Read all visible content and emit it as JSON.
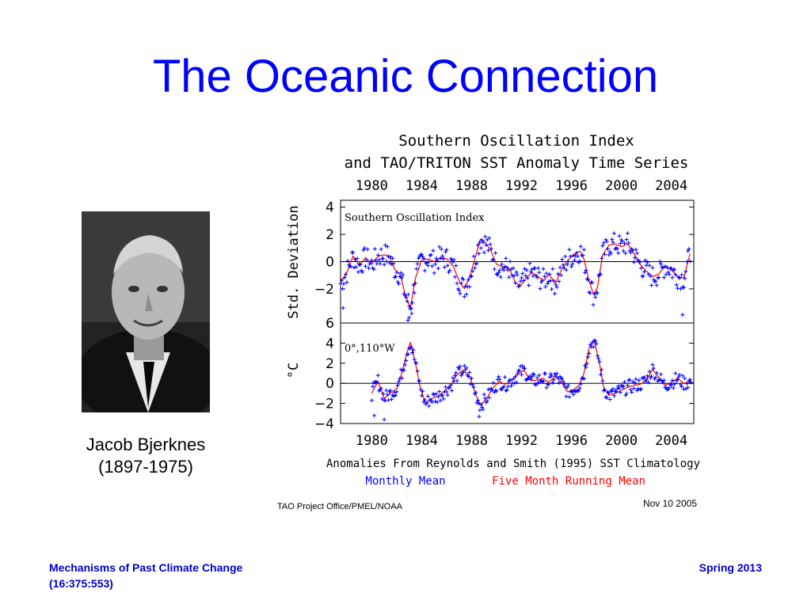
{
  "slide": {
    "title": "The Oceanic Connection",
    "caption_name": "Jacob Bjerknes",
    "caption_years": "(1897-1975)",
    "footer_left_line1": "Mechanisms of Past Climate Change",
    "footer_left_line2": "(16:375:553)",
    "footer_right": "Spring 2013"
  },
  "colors": {
    "title": "#0000ff",
    "footer": "#0000cc",
    "monthly": "#0000ff",
    "running": "#ff0000",
    "axis": "#000000"
  },
  "chart_data": {
    "type": "line",
    "title_line1": "Southern Oscillation Index",
    "title_line2": "and TAO/TRITON SST Anomaly Time Series",
    "x_ticks": [
      "1980",
      "1984",
      "1988",
      "1992",
      "1996",
      "2000",
      "2004"
    ],
    "xlim": [
      1977.5,
      2005.8
    ],
    "panels": [
      {
        "name": "soi",
        "label": "Southern Oscillation Index",
        "ylabel": "Std. Deviation",
        "ylim": [
          -4.5,
          4.5
        ],
        "y_ticks": [
          "4",
          "2",
          "0",
          "−2"
        ],
        "y_tick_values": [
          4,
          2,
          0,
          -2
        ],
        "zero_line": true,
        "anchors": [
          [
            1977.5,
            -1.6
          ],
          [
            1978.0,
            -0.8
          ],
          [
            1978.5,
            0.4
          ],
          [
            1979.0,
            -0.3
          ],
          [
            1979.5,
            0.3
          ],
          [
            1980.0,
            -0.2
          ],
          [
            1980.5,
            0.4
          ],
          [
            1981.0,
            0.5
          ],
          [
            1981.4,
            0.4
          ],
          [
            1981.8,
            -0.5
          ],
          [
            1982.3,
            -1.0
          ],
          [
            1982.7,
            -2.5
          ],
          [
            1983.1,
            -3.4
          ],
          [
            1983.5,
            -1.2
          ],
          [
            1984.0,
            0.1
          ],
          [
            1984.5,
            0.2
          ],
          [
            1985.0,
            0.0
          ],
          [
            1985.5,
            0.3
          ],
          [
            1986.0,
            0.2
          ],
          [
            1986.5,
            -0.3
          ],
          [
            1987.0,
            -1.4
          ],
          [
            1987.4,
            -2.0
          ],
          [
            1987.8,
            -1.2
          ],
          [
            1988.3,
            0.3
          ],
          [
            1988.7,
            1.7
          ],
          [
            1989.0,
            1.5
          ],
          [
            1989.5,
            0.9
          ],
          [
            1990.0,
            -0.2
          ],
          [
            1990.5,
            -0.4
          ],
          [
            1991.0,
            -0.5
          ],
          [
            1991.5,
            -1.5
          ],
          [
            1991.9,
            -1.8
          ],
          [
            1992.3,
            -1.3
          ],
          [
            1992.8,
            -0.8
          ],
          [
            1993.3,
            -1.1
          ],
          [
            1993.8,
            -1.4
          ],
          [
            1994.2,
            -0.9
          ],
          [
            1994.7,
            -1.6
          ],
          [
            1995.2,
            -0.6
          ],
          [
            1995.7,
            0.1
          ],
          [
            1996.2,
            0.5
          ],
          [
            1996.7,
            0.8
          ],
          [
            1997.0,
            0.2
          ],
          [
            1997.4,
            -1.4
          ],
          [
            1997.8,
            -2.5
          ],
          [
            1998.1,
            -1.8
          ],
          [
            1998.5,
            0.5
          ],
          [
            1999.0,
            1.2
          ],
          [
            1999.5,
            1.3
          ],
          [
            2000.0,
            1.1
          ],
          [
            2000.5,
            1.3
          ],
          [
            2001.0,
            0.6
          ],
          [
            2001.5,
            -0.2
          ],
          [
            2002.0,
            -0.7
          ],
          [
            2002.5,
            -1.1
          ],
          [
            2003.0,
            -0.9
          ],
          [
            2003.5,
            -0.3
          ],
          [
            2004.0,
            -0.6
          ],
          [
            2004.5,
            -1.1
          ],
          [
            2005.0,
            -1.2
          ],
          [
            2005.5,
            0.6
          ]
        ],
        "spread": 0.85,
        "outliers": [
          [
            1977.7,
            -3.4
          ],
          [
            1982.9,
            -4.3
          ],
          [
            1983.0,
            -4.1
          ],
          [
            2004.9,
            -3.9
          ],
          [
            1983.2,
            -3.8
          ]
        ]
      },
      {
        "name": "sst",
        "label": "0°,110°W",
        "ylabel": "°C",
        "ylim": [
          -4,
          6
        ],
        "y_ticks": [
          "6",
          "4",
          "2",
          "0",
          "−2",
          "−4"
        ],
        "y_tick_values": [
          6,
          4,
          2,
          0,
          -2,
          -4
        ],
        "zero_line": true,
        "anchors": [
          [
            1980.0,
            -1.0
          ],
          [
            1980.5,
            0.2
          ],
          [
            1981.0,
            -1.5
          ],
          [
            1981.5,
            -1.0
          ],
          [
            1982.0,
            -0.5
          ],
          [
            1982.4,
            1.0
          ],
          [
            1982.8,
            3.0
          ],
          [
            1983.1,
            4.1
          ],
          [
            1983.5,
            2.0
          ],
          [
            1983.9,
            -0.5
          ],
          [
            1984.3,
            -2.0
          ],
          [
            1984.8,
            -1.5
          ],
          [
            1985.3,
            -1.3
          ],
          [
            1985.8,
            -0.8
          ],
          [
            1986.3,
            -0.3
          ],
          [
            1986.8,
            0.8
          ],
          [
            1987.3,
            1.3
          ],
          [
            1987.8,
            0.8
          ],
          [
            1988.3,
            -1.0
          ],
          [
            1988.7,
            -2.2
          ],
          [
            1989.2,
            -1.5
          ],
          [
            1989.7,
            -0.5
          ],
          [
            1990.2,
            0.2
          ],
          [
            1990.7,
            -0.1
          ],
          [
            1991.2,
            0.3
          ],
          [
            1991.7,
            0.9
          ],
          [
            1992.2,
            1.3
          ],
          [
            1992.7,
            0.3
          ],
          [
            1993.2,
            0.3
          ],
          [
            1993.7,
            0.5
          ],
          [
            1994.2,
            0.1
          ],
          [
            1994.7,
            0.7
          ],
          [
            1995.2,
            0.1
          ],
          [
            1995.7,
            -0.9
          ],
          [
            1996.2,
            -0.6
          ],
          [
            1996.6,
            -0.2
          ],
          [
            1997.0,
            1.0
          ],
          [
            1997.4,
            3.5
          ],
          [
            1997.8,
            4.3
          ],
          [
            1998.2,
            2.3
          ],
          [
            1998.6,
            -0.5
          ],
          [
            1999.0,
            -1.2
          ],
          [
            1999.5,
            -1.0
          ],
          [
            2000.0,
            -0.7
          ],
          [
            2000.5,
            -0.4
          ],
          [
            2001.0,
            -0.2
          ],
          [
            2001.5,
            -0.1
          ],
          [
            2002.0,
            0.3
          ],
          [
            2002.5,
            1.4
          ],
          [
            2003.0,
            0.6
          ],
          [
            2003.5,
            -0.2
          ],
          [
            2004.0,
            0.1
          ],
          [
            2004.5,
            0.5
          ],
          [
            2005.0,
            0.0
          ],
          [
            2005.6,
            0.2
          ]
        ],
        "spread": 0.7,
        "outliers": [
          [
            1980.2,
            -3.2
          ],
          [
            1981.0,
            -3.6
          ],
          [
            1988.6,
            -3.3
          ]
        ]
      }
    ],
    "xlabel": "Anomalies From Reynolds and Smith (1995) SST Climatology",
    "series": [
      {
        "name": "Monthly Mean",
        "marker": "+"
      },
      {
        "name": "Five Month Running Mean",
        "marker": "line"
      }
    ],
    "credit_left": "TAO Project Office/PMEL/NOAA",
    "credit_right": "Nov 10 2005"
  }
}
